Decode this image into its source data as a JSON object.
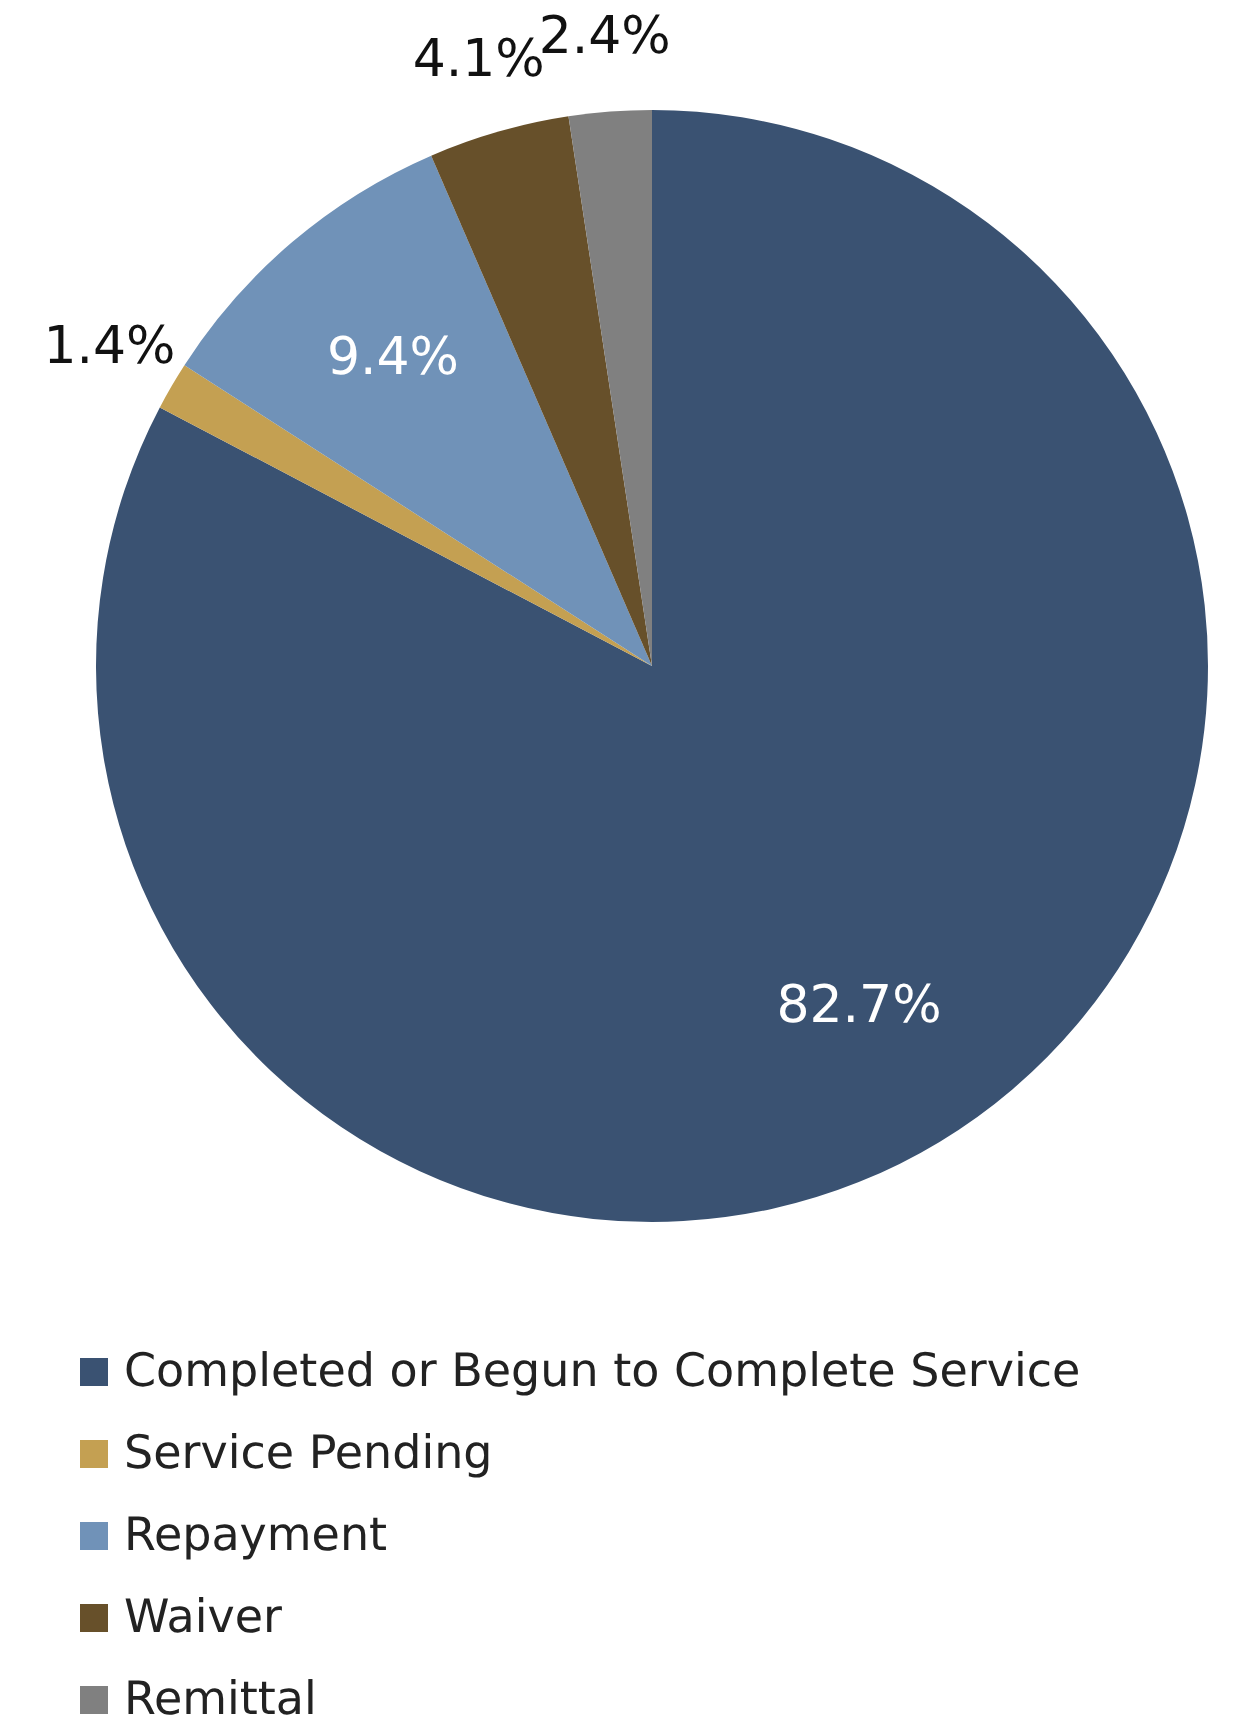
{
  "chart_data": {
    "type": "pie",
    "categories": [
      "Completed or Begun to Complete Service",
      "Service Pending",
      "Repayment",
      "Waiver",
      "Remittal"
    ],
    "values": [
      82.7,
      1.4,
      9.4,
      4.1,
      2.4
    ],
    "colors": [
      "#3a5272",
      "#c4a052",
      "#7092b8",
      "#67502a",
      "#808080"
    ],
    "value_labels": [
      "82.7%",
      "1.4%",
      "9.4%",
      "4.1%",
      "2.4%"
    ],
    "legend": "bottom"
  }
}
